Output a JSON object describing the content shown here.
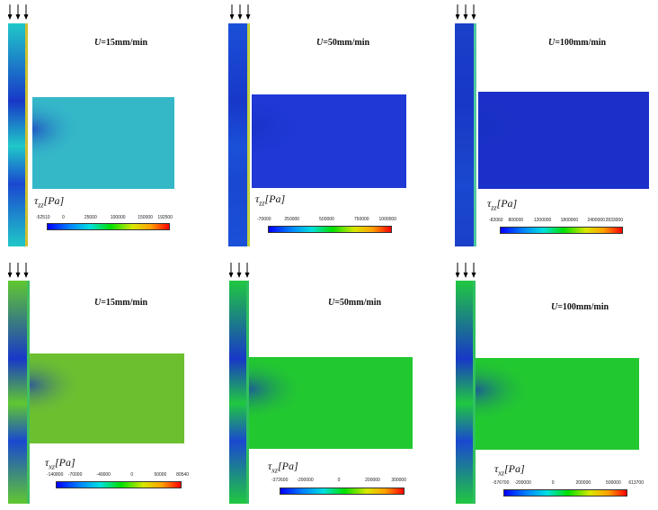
{
  "symbols": {
    "zz": "τzz",
    "xz": "τxz"
  },
  "panels": [
    {
      "id": "zz-15",
      "row": "zz",
      "speed_prefix": "U",
      "speed_value": "=15mm/min",
      "label_main": "τ",
      "label_sub": "zz",
      "label_unit": "[Pa]",
      "ticks": [
        "-52510",
        "0",
        "25000",
        "100000",
        "150000",
        "192500"
      ],
      "colors": {
        "channel": "#20c8c8",
        "duct": "#34b8c8",
        "wall": "#d0c030"
      }
    },
    {
      "id": "zz-50",
      "row": "zz",
      "speed_prefix": "U",
      "speed_value": "=50mm/min",
      "label_main": "τ",
      "label_sub": "zz",
      "label_unit": "[Pa]",
      "ticks": [
        "-70000",
        "250000",
        "500000",
        "750000",
        "1000000"
      ],
      "colors": {
        "channel": "#1a50d8",
        "duct": "#1f38d6",
        "wall": "#c0d040"
      }
    },
    {
      "id": "zz-100",
      "row": "zz",
      "speed_prefix": "U",
      "speed_value": "=100mm/min",
      "label_main": "τ",
      "label_sub": "zz",
      "label_unit": "[Pa]",
      "ticks": [
        "-82060",
        "800000",
        "1200000",
        "1800000",
        "2400000",
        "2833000"
      ],
      "colors": {
        "channel": "#1a40c8",
        "duct": "#1a30c8",
        "wall": "#50c8a0"
      }
    },
    {
      "id": "xz-15",
      "row": "xz",
      "speed_prefix": "U",
      "speed_value": "=15mm/min",
      "label_main": "τ",
      "label_sub": "xz",
      "label_unit": "[Pa]",
      "ticks": [
        "-140800",
        "-70000",
        "-40000",
        "0",
        "50000",
        "80540"
      ],
      "colors": {
        "channel": "#60c830",
        "duct": "#6cc030",
        "wall": "#40c060"
      }
    },
    {
      "id": "xz-50",
      "row": "xz",
      "speed_prefix": "U",
      "speed_value": "=50mm/min",
      "label_main": "τ",
      "label_sub": "xz",
      "label_unit": "[Pa]",
      "ticks": [
        "-372600",
        "-200000",
        "0",
        "200000",
        "300000"
      ],
      "colors": {
        "channel": "#20c840",
        "duct": "#22c830",
        "wall": "#30c060"
      }
    },
    {
      "id": "xz-100",
      "row": "xz",
      "speed_prefix": "U",
      "speed_value": "=100mm/min",
      "label_main": "τ",
      "label_sub": "xz",
      "label_unit": "[Pa]",
      "ticks": [
        "-576700",
        "-200000",
        "0",
        "200000",
        "500000",
        "613700"
      ],
      "colors": {
        "channel": "#20c840",
        "duct": "#22c830",
        "wall": "#30c060"
      }
    }
  ]
}
